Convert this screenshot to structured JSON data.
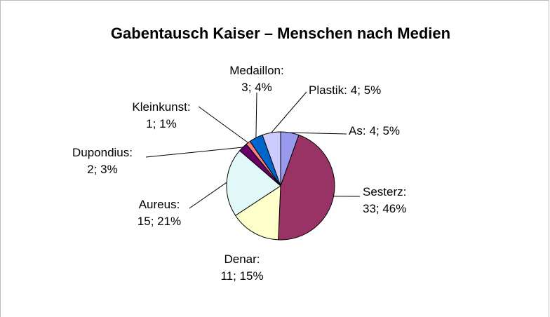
{
  "chart_data": {
    "type": "pie",
    "title": "Gabentausch Kaiser – Menschen nach Medien",
    "categories": [
      "As:",
      "Sesterz:",
      "Denar:",
      "Aureus:",
      "Dupondius:",
      "Kleinkunst:",
      "Medaillon:",
      "Plastik:"
    ],
    "values": [
      4,
      33,
      11,
      15,
      2,
      1,
      3,
      4
    ],
    "value_labels": [
      "4; 5%",
      "33; 46%",
      "11; 15%",
      "15; 21%",
      "2; 3%",
      "1; 1%",
      "3; 4%",
      "4; 5%"
    ],
    "colors": [
      "#9999ee",
      "#993366",
      "#ffffcc",
      "#e0f8f8",
      "#660066",
      "#ff8080",
      "#0066cc",
      "#ccccff"
    ]
  }
}
